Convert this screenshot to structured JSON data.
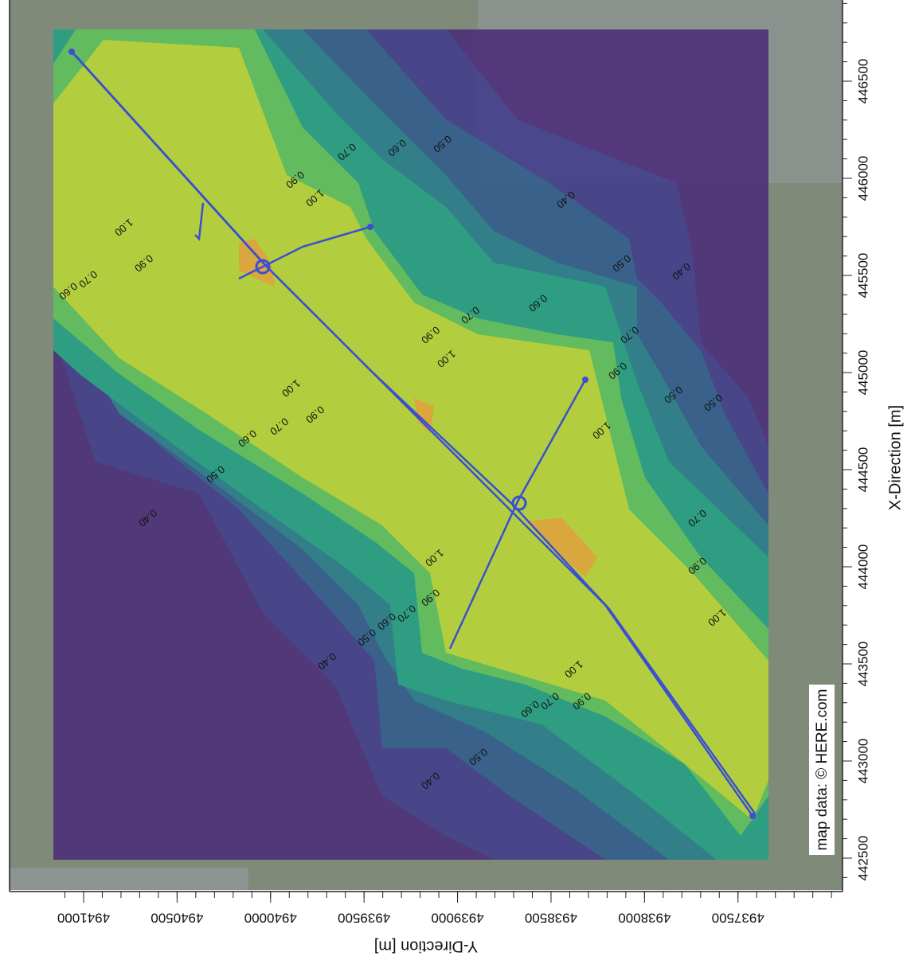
{
  "map": {
    "attribution": "map data: © HERE.com",
    "contour_labels": [
      "0.70",
      "0.60",
      "0.50",
      "0.90",
      "1.00",
      "0.40",
      "1.00",
      "0.90",
      "0.70",
      "0.60",
      "0.50",
      "0.40",
      "0.60",
      "0.70",
      "0.90",
      "1.00",
      "0.70",
      "0.90",
      "1.00",
      "0.90",
      "0.70",
      "0.60",
      "0.50",
      "0.50",
      "1.00",
      "0.50",
      "0.40",
      "0.70",
      "1.00",
      "0.90",
      "0.90",
      "0.70",
      "0.60",
      "0.50",
      "1.00",
      "0.40",
      "1.00",
      "0.90",
      "0.70",
      "0.60",
      "0.50",
      "0.40"
    ]
  },
  "x_axis": {
    "label": "X-Direction [m]",
    "range": [
      442336,
      446918
    ],
    "ticks": [
      442500,
      443000,
      443500,
      444000,
      444500,
      445000,
      445500,
      446000,
      446500
    ]
  },
  "y_axis": {
    "label": "Y-Direction [m]",
    "range": [
      4941396,
      4936941
    ],
    "ticks": [
      4941000,
      4940500,
      4940000,
      4939500,
      4939000,
      4938500,
      4938000,
      4937500
    ]
  }
}
